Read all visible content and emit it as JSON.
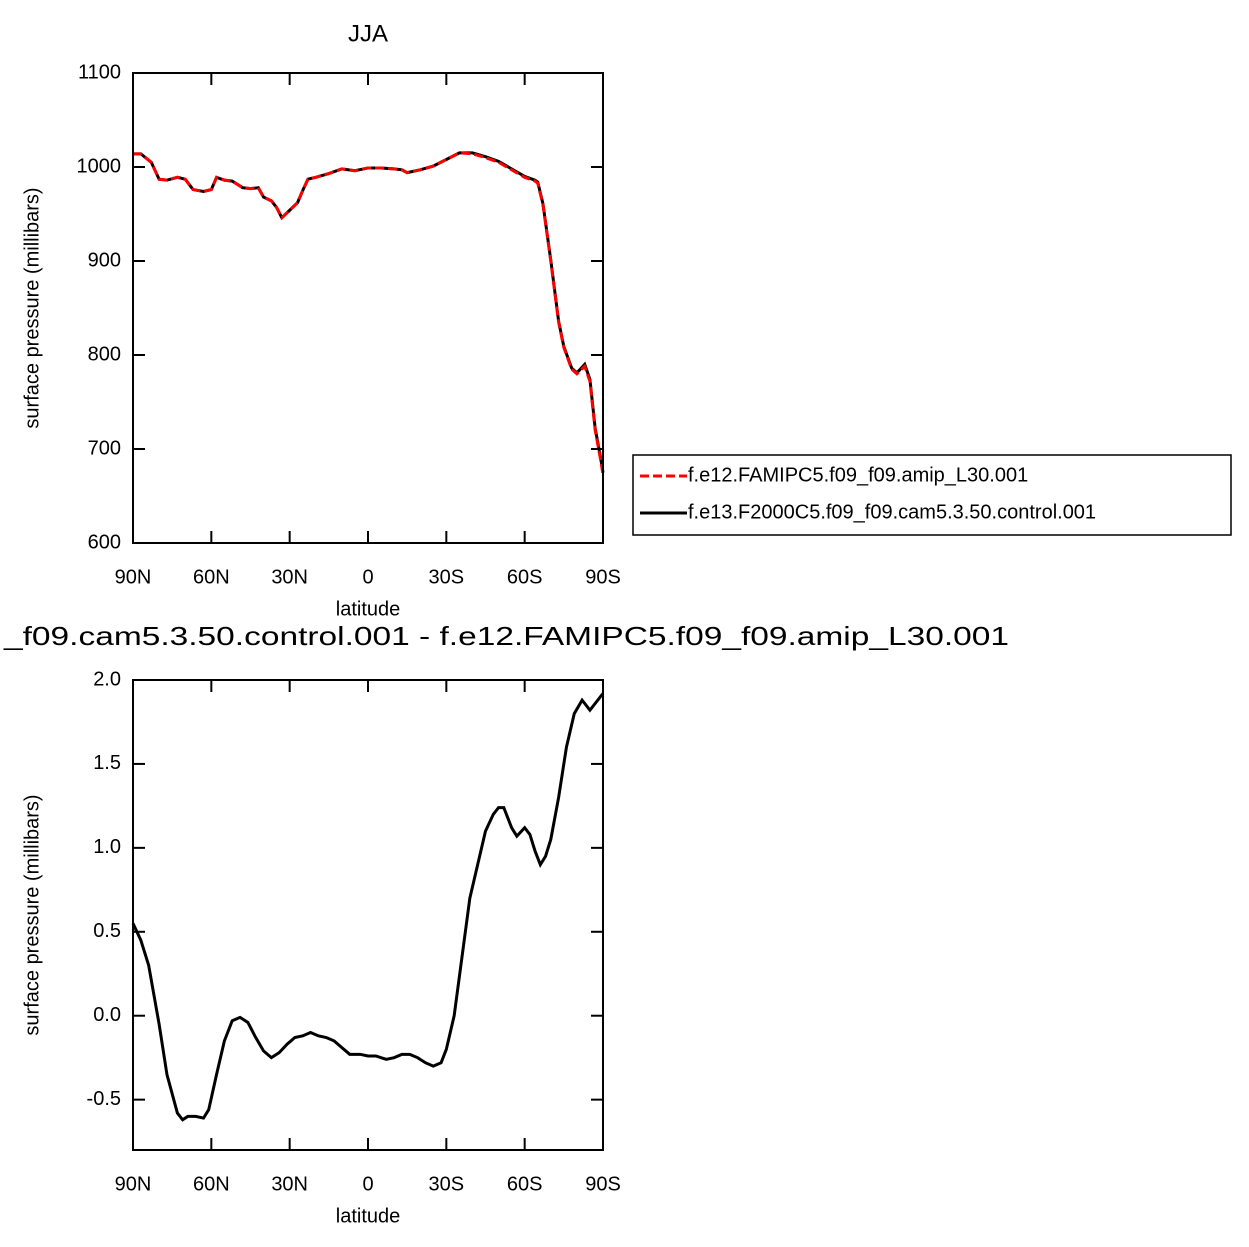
{
  "chart_data": [
    {
      "type": "line",
      "title": "JJA",
      "xlabel": "latitude",
      "ylabel": "surface pressure (millibars)",
      "x": [
        90,
        87,
        83,
        80,
        77,
        73,
        70,
        67,
        63,
        60,
        58,
        55,
        52,
        48,
        45,
        42,
        40,
        37,
        35,
        33,
        30,
        27,
        25,
        23,
        20,
        15,
        10,
        5,
        0,
        -5,
        -10,
        -13,
        -15,
        -20,
        -25,
        -30,
        -35,
        -40,
        -45,
        -50,
        -55,
        -60,
        -64,
        -65,
        -67,
        -70,
        -73,
        -75,
        -78,
        -80,
        -83,
        -85,
        -87,
        -89,
        -90
      ],
      "series": [
        {
          "name": "f.e12.FAMIPC5.f09_f09.amip_L30.001",
          "color": "#ff0000",
          "linestyle": "dashed",
          "values": [
            1014,
            1014,
            1005,
            987,
            986,
            989,
            987,
            976,
            974,
            976,
            989,
            986,
            985,
            978,
            977,
            978,
            968,
            964,
            957,
            946,
            954,
            962,
            975,
            987,
            989,
            993,
            998,
            996,
            999,
            999,
            998,
            997,
            994,
            997,
            1001,
            1008,
            1015,
            1014,
            1010,
            1005,
            997,
            989,
            985,
            983,
            960,
            900,
            835,
            808,
            785,
            780,
            788,
            772,
            720,
            690,
            673
          ]
        },
        {
          "name": "f.e13.F2000C5.f09_f09.cam5.3.50.control.001",
          "color": "#000000",
          "linestyle": "solid",
          "values": [
            1014,
            1014,
            1005,
            987,
            986,
            989,
            987,
            976,
            974,
            976,
            989,
            986,
            985,
            978,
            977,
            978,
            968,
            964,
            957,
            946,
            954,
            962,
            975,
            987,
            989,
            993,
            998,
            996,
            999,
            999,
            998,
            997,
            994,
            997,
            1001,
            1008,
            1015,
            1015,
            1011,
            1006,
            998,
            990,
            986,
            984,
            961,
            901,
            836,
            809,
            786,
            781,
            790,
            774,
            722,
            692,
            675
          ]
        }
      ],
      "xlim": [
        90,
        -90
      ],
      "xticks": [
        {
          "value": 90,
          "label": "90N"
        },
        {
          "value": 60,
          "label": "60N"
        },
        {
          "value": 30,
          "label": "30N"
        },
        0,
        {
          "value": -30,
          "label": "30S"
        },
        {
          "value": -60,
          "label": "60S"
        },
        {
          "value": -90,
          "label": "90S"
        }
      ],
      "ylim": [
        600,
        1100
      ],
      "yticks": [
        600,
        700,
        800,
        900,
        1000,
        1100
      ],
      "legend": "right"
    },
    {
      "type": "line",
      "title": "_f09.cam5.3.50.control.001 - f.e12.FAMIPC5.f09_f09.amip_L30.001",
      "xlabel": "latitude",
      "ylabel": "surface pressure (millibars)",
      "x": [
        90,
        87,
        84,
        80,
        77,
        73,
        71,
        69,
        66,
        63,
        61,
        58,
        55,
        52,
        49,
        46,
        43,
        40,
        37,
        34,
        31,
        28,
        25,
        22,
        19,
        16,
        13,
        10,
        7,
        3,
        0,
        -3,
        -7,
        -10,
        -13,
        -16,
        -19,
        -22,
        -25,
        -28,
        -30,
        -33,
        -36,
        -39,
        -42,
        -45,
        -48,
        -50,
        -52,
        -55,
        -57,
        -60,
        -62,
        -64,
        -66,
        -68,
        -70,
        -73,
        -76,
        -79,
        -82,
        -85,
        -88,
        -90
      ],
      "series": [
        {
          "color": "#000000",
          "linestyle": "solid",
          "values": [
            0.55,
            0.45,
            0.3,
            -0.05,
            -0.35,
            -0.58,
            -0.62,
            -0.6,
            -0.6,
            -0.61,
            -0.56,
            -0.35,
            -0.15,
            -0.03,
            -0.01,
            -0.04,
            -0.13,
            -0.21,
            -0.25,
            -0.22,
            -0.17,
            -0.13,
            -0.12,
            -0.1,
            -0.12,
            -0.13,
            -0.15,
            -0.19,
            -0.23,
            -0.23,
            -0.24,
            -0.24,
            -0.26,
            -0.25,
            -0.23,
            -0.23,
            -0.25,
            -0.28,
            -0.3,
            -0.28,
            -0.2,
            0.0,
            0.35,
            0.7,
            0.9,
            1.1,
            1.2,
            1.24,
            1.24,
            1.12,
            1.07,
            1.12,
            1.08,
            0.98,
            0.9,
            0.95,
            1.05,
            1.3,
            1.6,
            1.8,
            1.88,
            1.82,
            1.88,
            1.92
          ]
        }
      ],
      "xlim": [
        90,
        -90
      ],
      "xticks": [
        {
          "value": 90,
          "label": "90N"
        },
        {
          "value": 60,
          "label": "60N"
        },
        {
          "value": 30,
          "label": "30N"
        },
        0,
        {
          "value": -30,
          "label": "30S"
        },
        {
          "value": -60,
          "label": "60S"
        },
        {
          "value": -90,
          "label": "90S"
        }
      ],
      "ylim": [
        -0.8,
        2.0
      ],
      "yticks": [
        {
          "value": -0.5,
          "label": "-0.5"
        },
        {
          "value": 0,
          "label": "0.0"
        },
        0.5,
        {
          "value": 1,
          "label": "1.0"
        },
        1.5,
        {
          "value": 2,
          "label": "2.0"
        }
      ]
    }
  ]
}
